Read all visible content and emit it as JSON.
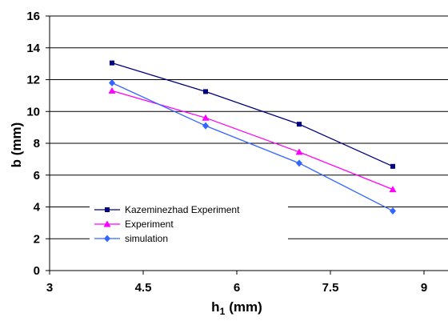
{
  "chart_data": {
    "type": "line",
    "xlabel": "h",
    "xlabel_subscript": "1",
    "xlabel_unit": "(mm)",
    "ylabel": "b (mm)",
    "xlim": [
      3,
      9
    ],
    "ylim": [
      0,
      16
    ],
    "x_ticks": [
      3,
      4.5,
      6,
      7.5,
      9
    ],
    "y_ticks": [
      0,
      2,
      4,
      6,
      8,
      10,
      12,
      14,
      16
    ],
    "grid": "horizontal",
    "legend_position": "lower-left",
    "x": [
      4,
      5.5,
      7,
      8.5
    ],
    "series": [
      {
        "name": "Kazeminezhad Experiment",
        "values": [
          13.05,
          11.25,
          9.2,
          6.55
        ],
        "color": "#000080",
        "marker": "square"
      },
      {
        "name": "Experiment",
        "values": [
          11.3,
          9.6,
          7.45,
          5.1
        ],
        "color": "#ff00ff",
        "marker": "triangle"
      },
      {
        "name": "simulation",
        "values": [
          11.8,
          9.1,
          6.75,
          3.75
        ],
        "color": "#3366ff",
        "marker": "diamond"
      }
    ]
  }
}
